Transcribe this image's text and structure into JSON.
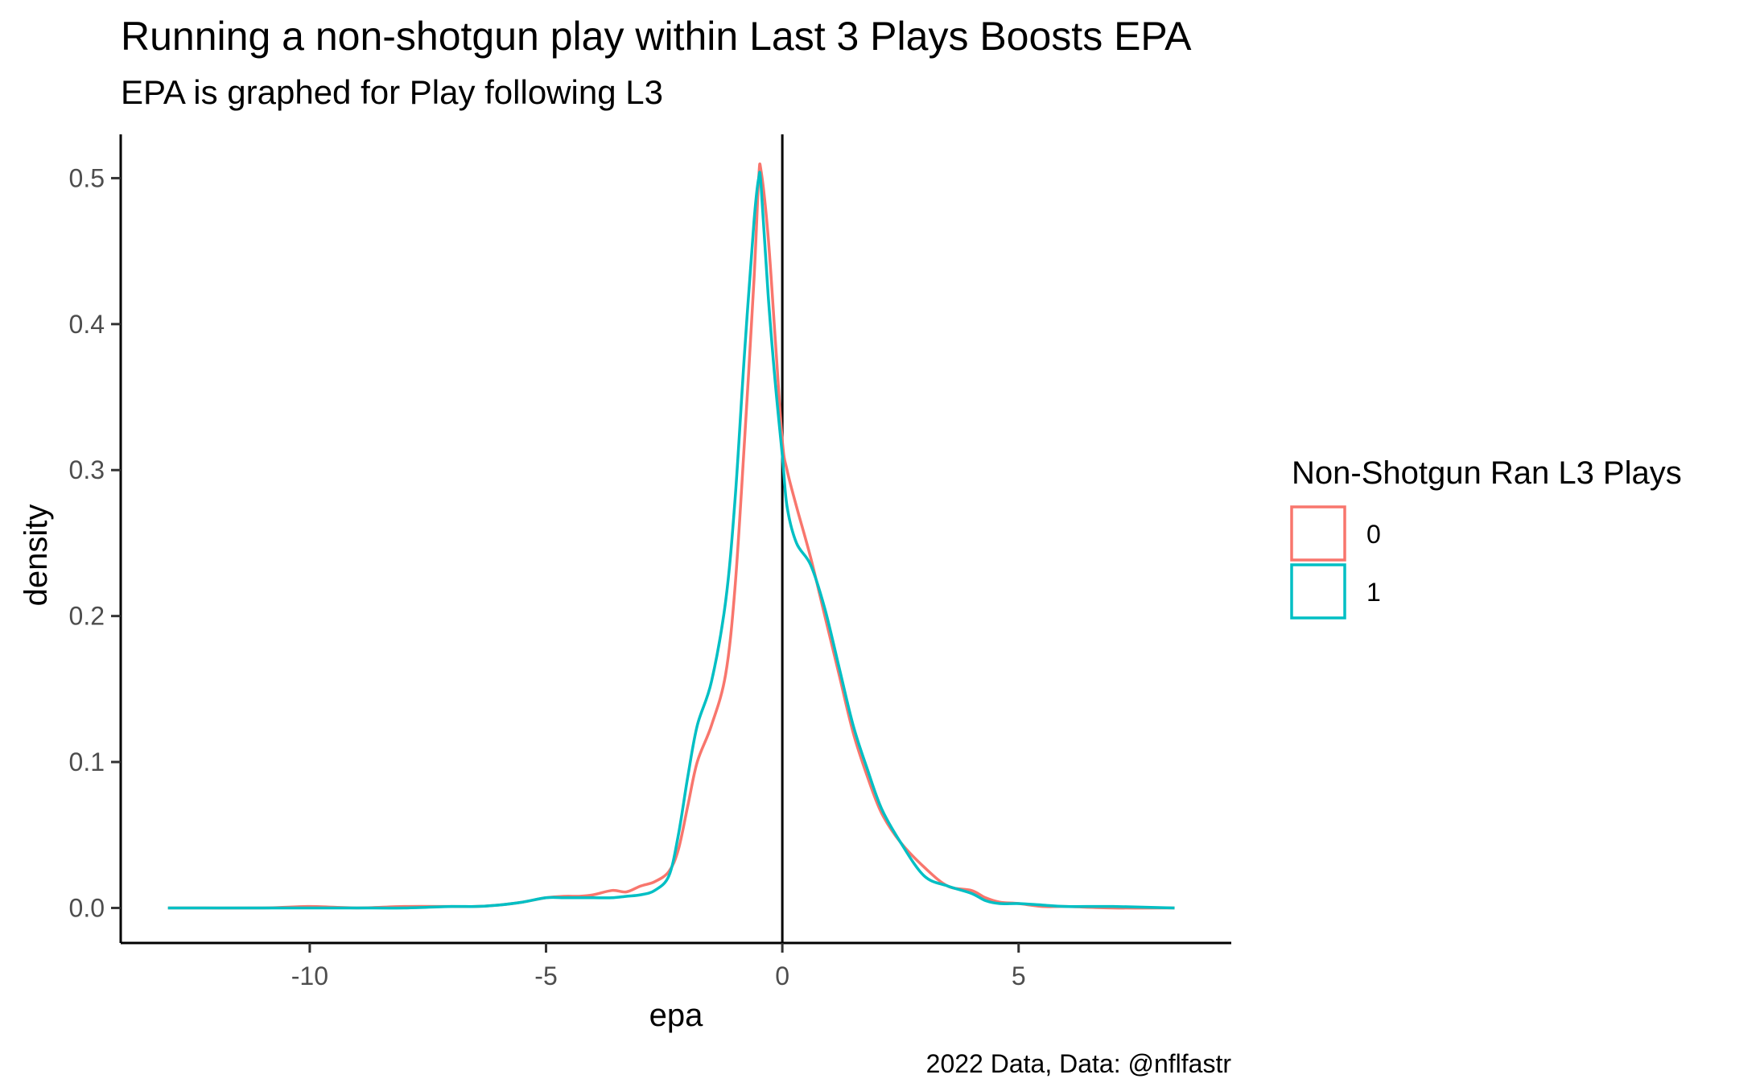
{
  "chart_data": {
    "type": "line",
    "title": "Running a non-shotgun play within Last 3 Plays Boosts EPA",
    "subtitle": "EPA is graphed for Play following L3",
    "caption": "2022 Data, Data: @nflfastr",
    "xlabel": "epa",
    "ylabel": "density",
    "xlim": [
      -14.0,
      9.5
    ],
    "ylim": [
      -0.024,
      0.53
    ],
    "x_ticks": [
      -10,
      -5,
      0,
      5
    ],
    "x_tick_labels": [
      "-10",
      "-5",
      "0",
      "5"
    ],
    "y_ticks": [
      0.0,
      0.1,
      0.2,
      0.3,
      0.4,
      0.5
    ],
    "y_tick_labels": [
      "0.0",
      "0.1",
      "0.2",
      "0.3",
      "0.4",
      "0.5"
    ],
    "vline_x": 0,
    "grid": false,
    "legend": {
      "title": "Non-Shotgun Ran L3 Plays",
      "position": "right"
    },
    "series": [
      {
        "name": "0",
        "color": "#F8766D",
        "x": [
          -13.0,
          -11.0,
          -10.0,
          -9.0,
          -8.0,
          -7.0,
          -6.5,
          -6.0,
          -5.5,
          -5.0,
          -4.6,
          -4.3,
          -4.0,
          -3.6,
          -3.3,
          -3.0,
          -2.7,
          -2.4,
          -2.2,
          -2.0,
          -1.8,
          -1.5,
          -1.2,
          -1.0,
          -0.8,
          -0.6,
          -0.5,
          -0.45,
          -0.3,
          -0.15,
          0.0,
          0.1,
          0.3,
          0.6,
          0.9,
          1.2,
          1.5,
          1.8,
          2.1,
          2.5,
          3.0,
          3.5,
          4.0,
          4.3,
          4.6,
          5.0,
          5.5,
          6.0,
          7.0,
          8.3
        ],
        "y": [
          0.0,
          0.0,
          0.001,
          0.0,
          0.001,
          0.001,
          0.001,
          0.002,
          0.004,
          0.007,
          0.008,
          0.008,
          0.009,
          0.012,
          0.011,
          0.015,
          0.018,
          0.025,
          0.04,
          0.07,
          0.1,
          0.125,
          0.16,
          0.22,
          0.32,
          0.43,
          0.5,
          0.505,
          0.46,
          0.39,
          0.32,
          0.3,
          0.275,
          0.24,
          0.2,
          0.16,
          0.12,
          0.09,
          0.065,
          0.045,
          0.028,
          0.015,
          0.012,
          0.007,
          0.004,
          0.003,
          0.001,
          0.001,
          0.0,
          0.0
        ]
      },
      {
        "name": "1",
        "color": "#00BFC4",
        "x": [
          -13.0,
          -11.0,
          -10.0,
          -9.0,
          -8.0,
          -7.0,
          -6.5,
          -6.0,
          -5.5,
          -5.0,
          -4.6,
          -4.3,
          -4.0,
          -3.6,
          -3.3,
          -3.0,
          -2.7,
          -2.4,
          -2.2,
          -2.0,
          -1.8,
          -1.5,
          -1.2,
          -1.0,
          -0.8,
          -0.6,
          -0.5,
          -0.45,
          -0.3,
          -0.15,
          0.0,
          0.1,
          0.3,
          0.6,
          0.9,
          1.2,
          1.5,
          1.8,
          2.1,
          2.5,
          3.0,
          3.5,
          4.0,
          4.3,
          4.6,
          5.0,
          5.5,
          6.0,
          7.0,
          8.3
        ],
        "y": [
          0.0,
          0.0,
          0.0,
          0.0,
          0.0,
          0.001,
          0.001,
          0.002,
          0.004,
          0.007,
          0.007,
          0.007,
          0.007,
          0.007,
          0.008,
          0.009,
          0.012,
          0.022,
          0.05,
          0.09,
          0.125,
          0.155,
          0.21,
          0.28,
          0.38,
          0.47,
          0.5,
          0.495,
          0.42,
          0.36,
          0.31,
          0.275,
          0.25,
          0.235,
          0.205,
          0.165,
          0.125,
          0.095,
          0.068,
          0.045,
          0.022,
          0.015,
          0.01,
          0.005,
          0.003,
          0.003,
          0.002,
          0.001,
          0.001,
          0.0
        ]
      }
    ]
  }
}
